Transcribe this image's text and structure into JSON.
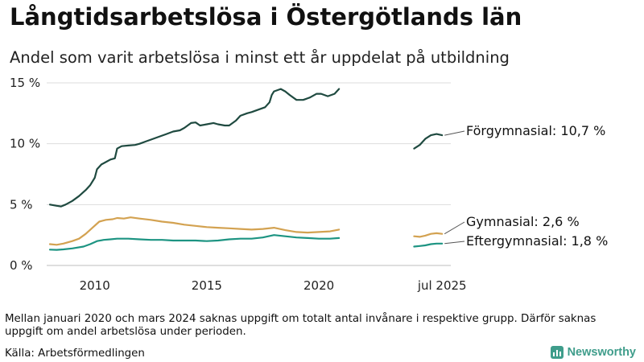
{
  "header": {
    "title": "Långtidsarbetslösa i Östergötlands län",
    "subtitle": "Andel som varit arbetslösa i minst ett år uppdelat på utbildning"
  },
  "footer": {
    "note": "Mellan januari 2020 och mars 2024 saknas uppgift om totalt antal invånare i respektive grupp. Därför saknas uppgift om andel arbetslösa under perioden.",
    "source": "Källa: Arbetsförmedlingen",
    "brand": "Newsworthy",
    "brand_icon": "bar-chart-icon"
  },
  "chart_data": {
    "type": "line",
    "title": "Långtidsarbetslösa i Östergötlands län",
    "subtitle": "Andel som varit arbetslösa i minst ett år uppdelat på utbildning",
    "xlabel": "",
    "ylabel": "",
    "ylim": [
      0,
      15
    ],
    "y_ticks": [
      {
        "value": 0,
        "label": "0 %"
      },
      {
        "value": 5,
        "label": "5 %"
      },
      {
        "value": 10,
        "label": "10 %"
      },
      {
        "value": 15,
        "label": "15 %"
      }
    ],
    "x_ticks": [
      {
        "value": 2010,
        "label": "2010"
      },
      {
        "value": 2015,
        "label": "2015"
      },
      {
        "value": 2020,
        "label": "2020"
      },
      {
        "value": 2025.5,
        "label": "jul 2025"
      }
    ],
    "grid": true,
    "series": [
      {
        "name": "Förgymnasial",
        "label": "Förgymnasial: 10,7 %",
        "color": "#1f4a40",
        "segments": [
          [
            [
              2008.0,
              5.0
            ],
            [
              2008.3,
              4.9
            ],
            [
              2008.5,
              4.85
            ],
            [
              2008.7,
              5.0
            ],
            [
              2009.0,
              5.3
            ],
            [
              2009.3,
              5.7
            ],
            [
              2009.6,
              6.2
            ],
            [
              2009.8,
              6.6
            ],
            [
              2010.0,
              7.2
            ],
            [
              2010.1,
              7.9
            ],
            [
              2010.3,
              8.3
            ],
            [
              2010.5,
              8.5
            ],
            [
              2010.7,
              8.7
            ],
            [
              2010.9,
              8.8
            ],
            [
              2011.0,
              9.6
            ],
            [
              2011.2,
              9.8
            ],
            [
              2011.5,
              9.85
            ],
            [
              2011.8,
              9.9
            ],
            [
              2012.0,
              10.0
            ],
            [
              2012.3,
              10.2
            ],
            [
              2012.6,
              10.4
            ],
            [
              2012.9,
              10.6
            ],
            [
              2013.2,
              10.8
            ],
            [
              2013.5,
              11.0
            ],
            [
              2013.8,
              11.1
            ],
            [
              2014.0,
              11.3
            ],
            [
              2014.3,
              11.7
            ],
            [
              2014.5,
              11.75
            ],
            [
              2014.7,
              11.5
            ],
            [
              2015.0,
              11.6
            ],
            [
              2015.3,
              11.7
            ],
            [
              2015.5,
              11.6
            ],
            [
              2015.8,
              11.5
            ],
            [
              2016.0,
              11.5
            ],
            [
              2016.3,
              11.9
            ],
            [
              2016.5,
              12.3
            ],
            [
              2016.8,
              12.5
            ],
            [
              2017.0,
              12.6
            ],
            [
              2017.3,
              12.8
            ],
            [
              2017.6,
              13.0
            ],
            [
              2017.8,
              13.4
            ],
            [
              2017.9,
              14.0
            ],
            [
              2018.0,
              14.3
            ],
            [
              2018.3,
              14.5
            ],
            [
              2018.5,
              14.3
            ],
            [
              2018.7,
              14.0
            ],
            [
              2019.0,
              13.6
            ],
            [
              2019.3,
              13.6
            ],
            [
              2019.6,
              13.8
            ],
            [
              2019.9,
              14.1
            ],
            [
              2020.1,
              14.1
            ],
            [
              2020.4,
              13.9
            ],
            [
              2020.7,
              14.1
            ],
            [
              2020.9,
              14.5
            ]
          ],
          [
            [
              2024.25,
              9.6
            ],
            [
              2024.5,
              9.9
            ],
            [
              2024.75,
              10.4
            ],
            [
              2025.0,
              10.7
            ],
            [
              2025.25,
              10.8
            ],
            [
              2025.5,
              10.7
            ]
          ]
        ]
      },
      {
        "name": "Gymnasial",
        "label": "Gymnasial:  2,6 %",
        "color": "#d3a251",
        "segments": [
          [
            [
              2008.0,
              1.75
            ],
            [
              2008.3,
              1.7
            ],
            [
              2008.6,
              1.8
            ],
            [
              2009.0,
              2.0
            ],
            [
              2009.3,
              2.2
            ],
            [
              2009.6,
              2.6
            ],
            [
              2009.9,
              3.1
            ],
            [
              2010.2,
              3.6
            ],
            [
              2010.5,
              3.75
            ],
            [
              2010.8,
              3.8
            ],
            [
              2011.0,
              3.9
            ],
            [
              2011.3,
              3.85
            ],
            [
              2011.6,
              3.95
            ],
            [
              2012.0,
              3.85
            ],
            [
              2012.5,
              3.75
            ],
            [
              2013.0,
              3.6
            ],
            [
              2013.5,
              3.5
            ],
            [
              2014.0,
              3.35
            ],
            [
              2014.5,
              3.25
            ],
            [
              2015.0,
              3.15
            ],
            [
              2015.5,
              3.1
            ],
            [
              2016.0,
              3.05
            ],
            [
              2016.5,
              3.0
            ],
            [
              2017.0,
              2.95
            ],
            [
              2017.5,
              3.0
            ],
            [
              2018.0,
              3.1
            ],
            [
              2018.5,
              2.9
            ],
            [
              2019.0,
              2.75
            ],
            [
              2019.5,
              2.7
            ],
            [
              2020.0,
              2.75
            ],
            [
              2020.5,
              2.8
            ],
            [
              2020.9,
              2.95
            ]
          ],
          [
            [
              2024.25,
              2.4
            ],
            [
              2024.5,
              2.35
            ],
            [
              2024.75,
              2.45
            ],
            [
              2025.0,
              2.6
            ],
            [
              2025.25,
              2.65
            ],
            [
              2025.5,
              2.6
            ]
          ]
        ]
      },
      {
        "name": "Eftergymnasial",
        "label": "Eftergymnasial:  1,8 %",
        "color": "#1d9482",
        "segments": [
          [
            [
              2008.0,
              1.3
            ],
            [
              2008.3,
              1.28
            ],
            [
              2008.6,
              1.32
            ],
            [
              2009.0,
              1.4
            ],
            [
              2009.5,
              1.55
            ],
            [
              2009.8,
              1.75
            ],
            [
              2010.1,
              2.0
            ],
            [
              2010.4,
              2.1
            ],
            [
              2010.7,
              2.15
            ],
            [
              2011.0,
              2.2
            ],
            [
              2011.5,
              2.2
            ],
            [
              2012.0,
              2.15
            ],
            [
              2012.5,
              2.1
            ],
            [
              2013.0,
              2.1
            ],
            [
              2013.5,
              2.05
            ],
            [
              2014.0,
              2.05
            ],
            [
              2014.5,
              2.05
            ],
            [
              2015.0,
              2.0
            ],
            [
              2015.5,
              2.05
            ],
            [
              2016.0,
              2.15
            ],
            [
              2016.5,
              2.2
            ],
            [
              2017.0,
              2.2
            ],
            [
              2017.5,
              2.3
            ],
            [
              2018.0,
              2.5
            ],
            [
              2018.5,
              2.4
            ],
            [
              2019.0,
              2.3
            ],
            [
              2019.5,
              2.25
            ],
            [
              2020.0,
              2.2
            ],
            [
              2020.5,
              2.2
            ],
            [
              2020.9,
              2.25
            ]
          ],
          [
            [
              2024.25,
              1.55
            ],
            [
              2024.5,
              1.6
            ],
            [
              2024.75,
              1.65
            ],
            [
              2025.0,
              1.75
            ],
            [
              2025.25,
              1.8
            ],
            [
              2025.5,
              1.8
            ]
          ]
        ]
      }
    ]
  }
}
